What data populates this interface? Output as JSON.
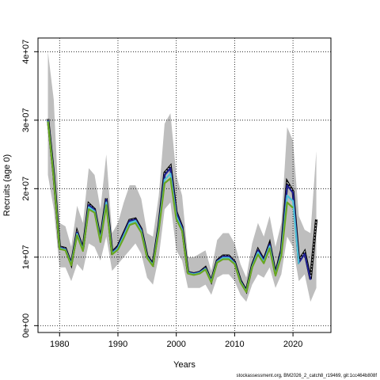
{
  "chart_data": {
    "type": "line",
    "title": "",
    "xlabel": "Years",
    "ylabel": "Recruits (age 0)",
    "xlim": [
      1976.3,
      2026.5
    ],
    "ylim": [
      -1000000,
      42000000
    ],
    "x_ticks": [
      1980,
      1990,
      2000,
      2010,
      2020
    ],
    "y_ticks": [
      0,
      10000000,
      20000000,
      30000000,
      40000000
    ],
    "y_tick_labels": [
      "0e+00",
      "1e+07",
      "2e+07",
      "3e+07",
      "4e+07"
    ],
    "grid": true,
    "grid_style": "dotted",
    "colors": {
      "band": "#bebebe",
      "black_series": "#000000",
      "navy_series": "#1f1f8f",
      "cyan_series": "#4fc3d9",
      "green_series": "#6aa621"
    },
    "x": [
      1978,
      1979,
      1980,
      1981,
      1982,
      1983,
      1984,
      1985,
      1986,
      1987,
      1988,
      1989,
      1990,
      1991,
      1992,
      1993,
      1994,
      1995,
      1996,
      1997,
      1998,
      1999,
      2000,
      2001,
      2002,
      2003,
      2004,
      2005,
      2006,
      2007,
      2008,
      2009,
      2010,
      2011,
      2012,
      2013,
      2014,
      2015,
      2016,
      2017,
      2018,
      2019,
      2020,
      2021,
      2022,
      2023,
      2024
    ],
    "band": {
      "name": "confidence interval",
      "lower": [
        22000000,
        17000000,
        8500000,
        8500000,
        6500000,
        9000000,
        8000000,
        12000000,
        11500000,
        9500000,
        13000000,
        8000000,
        9000000,
        10000000,
        11000000,
        12000000,
        10500000,
        7000000,
        6000000,
        10000000,
        17000000,
        18000000,
        11000000,
        9500000,
        5500000,
        5500000,
        5500000,
        6000000,
        4500000,
        7000000,
        7500000,
        7500000,
        6500000,
        4500000,
        3500000,
        6000000,
        7500000,
        7000000,
        8500000,
        5500000,
        7500000,
        13000000,
        11500000,
        6500000,
        7500000,
        3500000,
        5500000
      ],
      "upper": [
        40000000,
        33000000,
        15000000,
        14500000,
        11500000,
        17500000,
        15000000,
        23000000,
        22000000,
        17000000,
        25000000,
        13500000,
        15000000,
        18000000,
        20500000,
        20500000,
        18500000,
        13500000,
        13000000,
        19000000,
        29500000,
        31000000,
        22000000,
        19000000,
        10000000,
        10000000,
        10500000,
        11000000,
        8000000,
        12500000,
        13500000,
        13500000,
        12000000,
        9000000,
        7000000,
        12000000,
        15000000,
        13000000,
        16000000,
        11500000,
        15000000,
        29000000,
        27000000,
        16000000,
        14000000,
        13500000,
        25500000
      ]
    },
    "series": [
      {
        "color": "black_series",
        "dashed": true,
        "values": [
          30200000,
          22000000,
          11500000,
          11300000,
          9000000,
          13700000,
          11200000,
          17800000,
          17000000,
          12700000,
          18600000,
          10700000,
          11600000,
          13500000,
          15400000,
          15600000,
          14100000,
          10200000,
          9000000,
          14600000,
          22300000,
          23300000,
          16600000,
          14400000,
          7800000,
          7600000,
          7800000,
          8500000,
          6500000,
          9500000,
          10200000,
          10200000,
          9300000,
          6600000,
          5100000,
          8800000,
          11100000,
          9600000,
          12000000,
          7600000,
          11000000,
          21000000,
          19600000,
          9500000,
          10800000,
          6800000,
          15500000
        ]
      },
      {
        "color": "navy_series",
        "dashed": false,
        "values": [
          30000000,
          21900000,
          11400000,
          11200000,
          9000000,
          13600000,
          11100000,
          17600000,
          16900000,
          12600000,
          18400000,
          10600000,
          11500000,
          13400000,
          15300000,
          15500000,
          14000000,
          10100000,
          8900000,
          14500000,
          22000000,
          23000000,
          16500000,
          14300000,
          7800000,
          7600000,
          7800000,
          8400000,
          6500000,
          9400000,
          10100000,
          10100000,
          9200000,
          6500000,
          5000000,
          8700000,
          11000000,
          9500000,
          11900000,
          7500000,
          10800000,
          20500000,
          19400000,
          9200000,
          10500000,
          6700000,
          null
        ]
      },
      {
        "color": "cyan_series",
        "dashed": false,
        "values": [
          29900000,
          21700000,
          11300000,
          11100000,
          8900000,
          13400000,
          11000000,
          17300000,
          16700000,
          12400000,
          18000000,
          10500000,
          11300000,
          13100000,
          15000000,
          15300000,
          13800000,
          10000000,
          8800000,
          14200000,
          21300000,
          22200000,
          16000000,
          14000000,
          7700000,
          7500000,
          7700000,
          8300000,
          6400000,
          9300000,
          9900000,
          9900000,
          9100000,
          6400000,
          5000000,
          8600000,
          10700000,
          9300000,
          11600000,
          7400000,
          10500000,
          19000000,
          18200000,
          9000000,
          null,
          null,
          null
        ]
      },
      {
        "color": "green_series",
        "dashed": false,
        "values": [
          29800000,
          21500000,
          11200000,
          11000000,
          8800000,
          13200000,
          10900000,
          17000000,
          16500000,
          12200000,
          17600000,
          10400000,
          11100000,
          12800000,
          14700000,
          15000000,
          13600000,
          9900000,
          8700000,
          13900000,
          20800000,
          21500000,
          15600000,
          13800000,
          7600000,
          7400000,
          7600000,
          8200000,
          6300000,
          9200000,
          9700000,
          9700000,
          9000000,
          6300000,
          4900000,
          8500000,
          10400000,
          9100000,
          11300000,
          7300000,
          10200000,
          18000000,
          17200000,
          null,
          null,
          null,
          null
        ]
      }
    ]
  },
  "footer": {
    "source": "stockassessment.org, BM2026_2_catch8_r19469, git:1cc464b808f"
  }
}
